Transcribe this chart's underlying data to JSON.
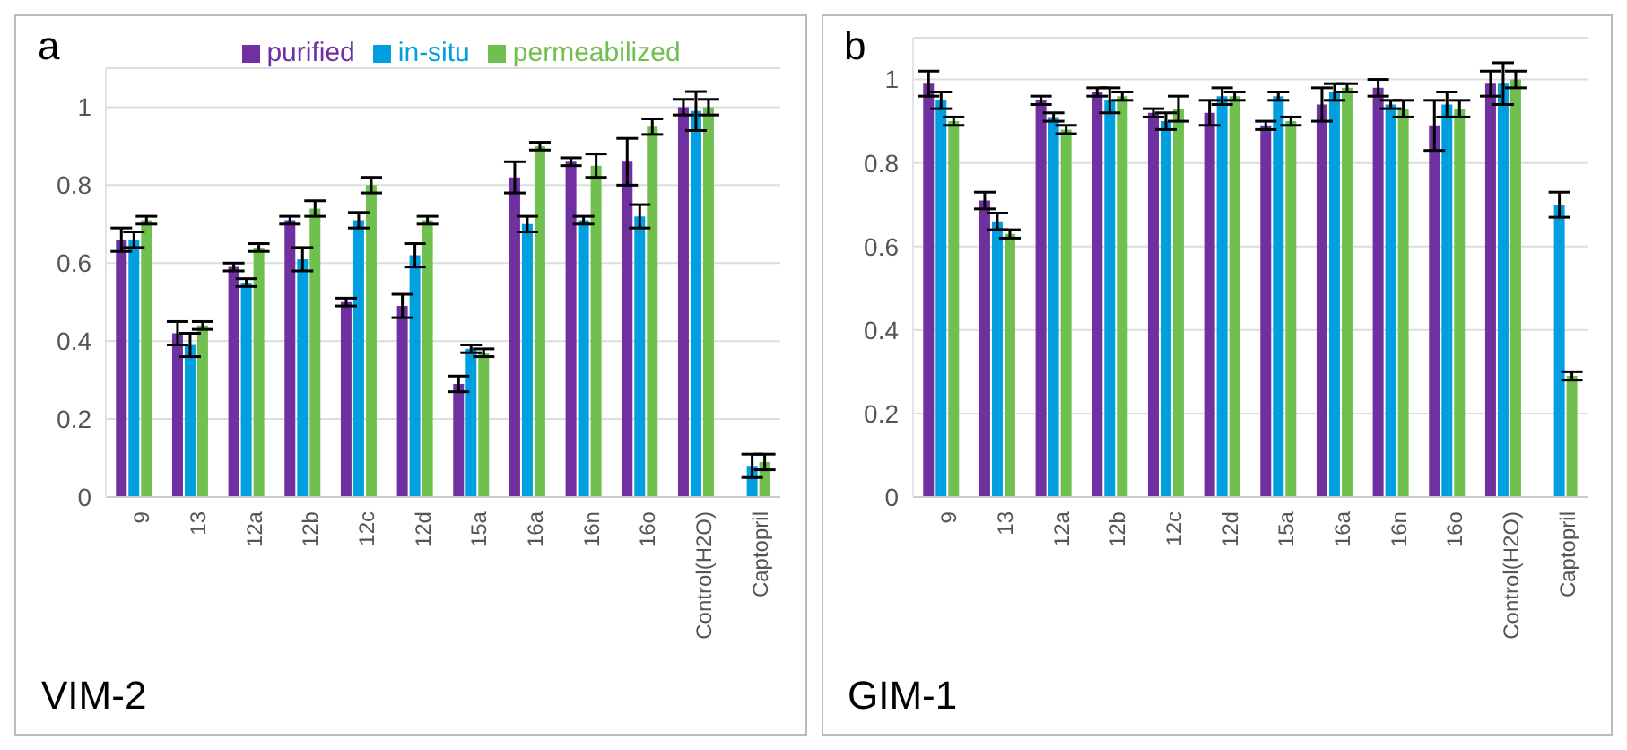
{
  "chart_data": [
    {
      "type": "bar",
      "title": "a",
      "categories": [
        "9",
        "13",
        "12a",
        "12b",
        "12c",
        "12d",
        "15a",
        "16a",
        "16n",
        "16o",
        "Control(H2O)",
        "Captopril"
      ],
      "series": [
        {
          "name": "purified",
          "color": "#7030a0",
          "values": [
            0.66,
            0.42,
            0.59,
            0.71,
            0.5,
            0.49,
            0.29,
            0.82,
            0.86,
            0.86,
            1.0,
            null
          ],
          "errors": [
            0.03,
            0.03,
            0.01,
            0.01,
            0.01,
            0.03,
            0.02,
            0.04,
            0.01,
            0.06,
            0.02,
            null
          ]
        },
        {
          "name": "in-situ",
          "color": "#00a0e0",
          "values": [
            0.66,
            0.39,
            0.55,
            0.61,
            0.71,
            0.62,
            0.38,
            0.7,
            0.71,
            0.72,
            0.99,
            0.08
          ],
          "errors": [
            0.02,
            0.03,
            0.01,
            0.03,
            0.02,
            0.03,
            0.01,
            0.02,
            0.01,
            0.03,
            0.05,
            0.03
          ]
        },
        {
          "name": "permeabilized",
          "color": "#70c050",
          "values": [
            0.71,
            0.44,
            0.64,
            0.74,
            0.8,
            0.71,
            0.37,
            0.9,
            0.85,
            0.95,
            1.0,
            0.09
          ],
          "errors": [
            0.01,
            0.01,
            0.01,
            0.02,
            0.02,
            0.01,
            0.01,
            0.01,
            0.03,
            0.02,
            0.02,
            0.02
          ]
        }
      ],
      "ylim": [
        0,
        1.1
      ],
      "yticks": [
        0,
        0.2,
        0.4,
        0.6,
        0.8,
        1
      ],
      "grid": "y",
      "legend": "top",
      "annotations": [
        "VIM-2"
      ]
    },
    {
      "type": "bar",
      "title": "b",
      "categories": [
        "9",
        "13",
        "12a",
        "12b",
        "12c",
        "12d",
        "15a",
        "16a",
        "16n",
        "16o",
        "Control(H2O)",
        "Captopril"
      ],
      "series": [
        {
          "color": "#7030a0",
          "values": [
            0.99,
            0.71,
            0.95,
            0.97,
            0.92,
            0.92,
            0.89,
            0.94,
            0.98,
            0.89,
            0.99,
            null
          ],
          "errors": [
            0.03,
            0.02,
            0.01,
            0.01,
            0.01,
            0.03,
            0.01,
            0.04,
            0.02,
            0.06,
            0.03,
            null
          ]
        },
        {
          "color": "#00a0e0",
          "values": [
            0.95,
            0.66,
            0.91,
            0.95,
            0.9,
            0.96,
            0.96,
            0.97,
            0.94,
            0.94,
            0.99,
            0.7
          ],
          "errors": [
            0.02,
            0.02,
            0.01,
            0.03,
            0.02,
            0.02,
            0.01,
            0.02,
            0.01,
            0.03,
            0.05,
            0.03
          ]
        },
        {
          "color": "#70c050",
          "values": [
            0.9,
            0.63,
            0.88,
            0.96,
            0.93,
            0.96,
            0.9,
            0.98,
            0.93,
            0.93,
            1.0,
            0.29
          ],
          "errors": [
            0.01,
            0.01,
            0.01,
            0.01,
            0.03,
            0.01,
            0.01,
            0.01,
            0.02,
            0.02,
            0.02,
            0.01
          ]
        }
      ],
      "ylim": [
        0,
        1.1
      ],
      "yticks": [
        0,
        0.2,
        0.4,
        0.6,
        0.8,
        1
      ],
      "grid": "y",
      "legend": false,
      "annotations": [
        "GIM-1"
      ]
    }
  ]
}
